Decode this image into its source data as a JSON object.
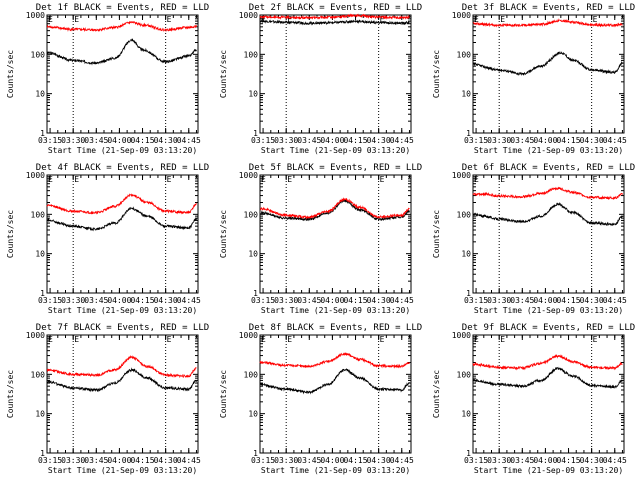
{
  "chart_data": [
    {
      "type": "line",
      "title": "Det 1f BLACK = Events, RED = LLD",
      "ylabel": "Counts/sec",
      "xlabel": "Start Time (21-Sep-09 03:13:20)",
      "x_ticks": [
        "03:15",
        "03:30",
        "03:45",
        "04:00",
        "04:15",
        "04:30",
        "04:45"
      ],
      "y_ticks": [
        "1",
        "10",
        "100",
        "1000"
      ],
      "ylim": [
        1,
        1000
      ],
      "y_scale": "log",
      "markers": [
        "03:30",
        "04:30"
      ],
      "marker_labels": [
        "E",
        "E"
      ],
      "x": [
        "03:13",
        "03:30",
        "03:45",
        "03:57",
        "04:08",
        "04:15",
        "04:30",
        "04:45",
        "04:50"
      ],
      "series": [
        {
          "color": "#000000",
          "values": [
            110,
            70,
            60,
            80,
            230,
            130,
            65,
            90,
            130
          ]
        },
        {
          "color": "#ff0000",
          "values": [
            500,
            430,
            420,
            480,
            650,
            560,
            420,
            480,
            520
          ]
        }
      ]
    },
    {
      "type": "line",
      "title": "Det 2f BLACK = Events, RED = LLD",
      "ylabel": "Counts/sec",
      "xlabel": "Start Time (21-Sep-09 03:13:20)",
      "x_ticks": [
        "03:15",
        "03:30",
        "03:45",
        "04:00",
        "04:15",
        "04:30",
        "04:45"
      ],
      "y_ticks": [
        "1",
        "10",
        "100",
        "1000"
      ],
      "ylim": [
        1,
        1000
      ],
      "y_scale": "log",
      "markers": [
        "03:30",
        "04:30"
      ],
      "marker_labels": [
        "E",
        "E"
      ],
      "x": [
        "03:13",
        "03:30",
        "03:45",
        "04:00",
        "04:15",
        "04:30",
        "04:45",
        "04:50"
      ],
      "series": [
        {
          "color": "#000000",
          "values": [
            700,
            650,
            620,
            640,
            690,
            640,
            620,
            640
          ]
        },
        {
          "color": "#ff0000",
          "values": [
            900,
            870,
            850,
            880,
            980,
            880,
            850,
            880
          ]
        }
      ]
    },
    {
      "type": "line",
      "title": "Det 3f BLACK = Events, RED = LLD",
      "ylabel": "Counts/sec",
      "xlabel": "Start Time (21-Sep-09 03:13:20)",
      "x_ticks": [
        "03:15",
        "03:30",
        "03:45",
        "04:00",
        "04:15",
        "04:30",
        "04:45"
      ],
      "y_ticks": [
        "1",
        "10",
        "100",
        "1000"
      ],
      "ylim": [
        1,
        1000
      ],
      "y_scale": "log",
      "markers": [
        "03:30",
        "04:30"
      ],
      "marker_labels": [
        "E",
        "E"
      ],
      "x": [
        "03:13",
        "03:30",
        "03:45",
        "03:57",
        "04:10",
        "04:18",
        "04:30",
        "04:45",
        "04:50"
      ],
      "series": [
        {
          "color": "#000000",
          "values": [
            55,
            40,
            32,
            50,
            110,
            70,
            40,
            35,
            60
          ]
        },
        {
          "color": "#ff0000",
          "values": [
            600,
            550,
            550,
            580,
            720,
            650,
            560,
            550,
            580
          ]
        }
      ]
    },
    {
      "type": "line",
      "title": "Det 4f BLACK = Events, RED = LLD",
      "ylabel": "Counts/sec",
      "xlabel": "Start Time (21-Sep-09 03:13:20)",
      "x_ticks": [
        "03:15",
        "03:30",
        "03:45",
        "04:00",
        "04:15",
        "04:30",
        "04:45"
      ],
      "y_ticks": [
        "1",
        "10",
        "100",
        "1000"
      ],
      "ylim": [
        1,
        1000
      ],
      "y_scale": "log",
      "markers": [
        "03:30",
        "04:30"
      ],
      "marker_labels": [
        "E",
        "E"
      ],
      "x": [
        "03:13",
        "03:30",
        "03:45",
        "03:57",
        "04:08",
        "04:18",
        "04:30",
        "04:45",
        "04:50"
      ],
      "series": [
        {
          "color": "#000000",
          "values": [
            70,
            50,
            42,
            60,
            140,
            90,
            50,
            45,
            75
          ]
        },
        {
          "color": "#ff0000",
          "values": [
            170,
            120,
            110,
            160,
            310,
            200,
            120,
            110,
            180
          ]
        }
      ]
    },
    {
      "type": "line",
      "title": "Det 5f BLACK = Events, RED = LLD",
      "ylabel": "Counts/sec",
      "xlabel": "Start Time (21-Sep-09 03:13:20)",
      "x_ticks": [
        "03:15",
        "03:30",
        "03:45",
        "04:00",
        "04:15",
        "04:30",
        "04:45"
      ],
      "y_ticks": [
        "1",
        "10",
        "100",
        "1000"
      ],
      "ylim": [
        1,
        1000
      ],
      "y_scale": "log",
      "markers": [
        "03:30",
        "04:30"
      ],
      "marker_labels": [
        "E",
        "E"
      ],
      "x": [
        "03:13",
        "03:30",
        "03:45",
        "03:57",
        "04:08",
        "04:18",
        "04:30",
        "04:45",
        "04:50"
      ],
      "series": [
        {
          "color": "#000000",
          "values": [
            110,
            80,
            75,
            110,
            220,
            130,
            75,
            85,
            120
          ]
        },
        {
          "color": "#ff0000",
          "values": [
            140,
            95,
            85,
            120,
            240,
            150,
            85,
            95,
            140
          ]
        }
      ]
    },
    {
      "type": "line",
      "title": "Det 6f BLACK = Events, RED = LLD",
      "ylabel": "Counts/sec",
      "xlabel": "Start Time (21-Sep-09 03:13:20)",
      "x_ticks": [
        "03:15",
        "03:30",
        "03:45",
        "04:00",
        "04:15",
        "04:30",
        "04:45"
      ],
      "y_ticks": [
        "1",
        "10",
        "100",
        "1000"
      ],
      "ylim": [
        1,
        1000
      ],
      "y_scale": "log",
      "markers": [
        "03:30",
        "04:30"
      ],
      "marker_labels": [
        "E",
        "E"
      ],
      "x": [
        "03:13",
        "03:20",
        "03:30",
        "03:45",
        "03:57",
        "04:08",
        "04:18",
        "04:30",
        "04:45",
        "04:50"
      ],
      "series": [
        {
          "color": "#000000",
          "values": [
            100,
            90,
            75,
            65,
            90,
            180,
            110,
            60,
            55,
            90
          ]
        },
        {
          "color": "#ff0000",
          "values": [
            320,
            330,
            290,
            280,
            340,
            460,
            360,
            270,
            260,
            330
          ]
        }
      ]
    },
    {
      "type": "line",
      "title": "Det 7f BLACK = Events, RED = LLD",
      "ylabel": "Counts/sec",
      "xlabel": "Start Time (21-Sep-09 03:13:20)",
      "x_ticks": [
        "03:15",
        "03:30",
        "03:45",
        "04:00",
        "04:15",
        "04:30",
        "04:45"
      ],
      "y_ticks": [
        "1",
        "10",
        "100",
        "1000"
      ],
      "ylim": [
        1,
        1000
      ],
      "y_scale": "log",
      "markers": [
        "03:30",
        "04:30"
      ],
      "marker_labels": [
        "E",
        "E"
      ],
      "x": [
        "03:13",
        "03:30",
        "03:45",
        "03:57",
        "04:08",
        "04:18",
        "04:30",
        "04:45",
        "04:50"
      ],
      "series": [
        {
          "color": "#000000",
          "values": [
            65,
            45,
            40,
            60,
            130,
            80,
            45,
            42,
            70
          ]
        },
        {
          "color": "#ff0000",
          "values": [
            130,
            100,
            95,
            130,
            270,
            160,
            95,
            90,
            140
          ]
        }
      ]
    },
    {
      "type": "line",
      "title": "Det 8f BLACK = Events, RED = LLD",
      "ylabel": "Counts/sec",
      "xlabel": "Start Time (21-Sep-09 03:13:20)",
      "x_ticks": [
        "03:15",
        "03:30",
        "03:45",
        "04:00",
        "04:15",
        "04:30",
        "04:45"
      ],
      "y_ticks": [
        "1",
        "10",
        "100",
        "1000"
      ],
      "ylim": [
        1,
        1000
      ],
      "y_scale": "log",
      "markers": [
        "03:30",
        "04:30"
      ],
      "marker_labels": [
        "E",
        "E"
      ],
      "x": [
        "03:13",
        "03:30",
        "03:45",
        "03:57",
        "04:08",
        "04:18",
        "04:30",
        "04:45",
        "04:50"
      ],
      "series": [
        {
          "color": "#000000",
          "values": [
            55,
            42,
            35,
            55,
            130,
            80,
            42,
            40,
            60
          ]
        },
        {
          "color": "#ff0000",
          "values": [
            200,
            170,
            160,
            210,
            330,
            240,
            165,
            160,
            200
          ]
        }
      ]
    },
    {
      "type": "line",
      "title": "Det 9f BLACK = Events, RED = LLD",
      "ylabel": "Counts/sec",
      "xlabel": "Start Time (21-Sep-09 03:13:20)",
      "x_ticks": [
        "03:15",
        "03:30",
        "03:45",
        "04:00",
        "04:15",
        "04:30",
        "04:45"
      ],
      "y_ticks": [
        "1",
        "10",
        "100",
        "1000"
      ],
      "ylim": [
        1,
        1000
      ],
      "y_scale": "log",
      "markers": [
        "03:30",
        "04:30"
      ],
      "marker_labels": [
        "E",
        "E"
      ],
      "x": [
        "03:13",
        "03:30",
        "03:45",
        "03:57",
        "04:08",
        "04:18",
        "04:30",
        "04:45",
        "04:50"
      ],
      "series": [
        {
          "color": "#000000",
          "values": [
            70,
            55,
            50,
            70,
            140,
            90,
            52,
            48,
            70
          ]
        },
        {
          "color": "#ff0000",
          "values": [
            180,
            150,
            145,
            190,
            290,
            210,
            150,
            145,
            190
          ]
        }
      ]
    }
  ]
}
